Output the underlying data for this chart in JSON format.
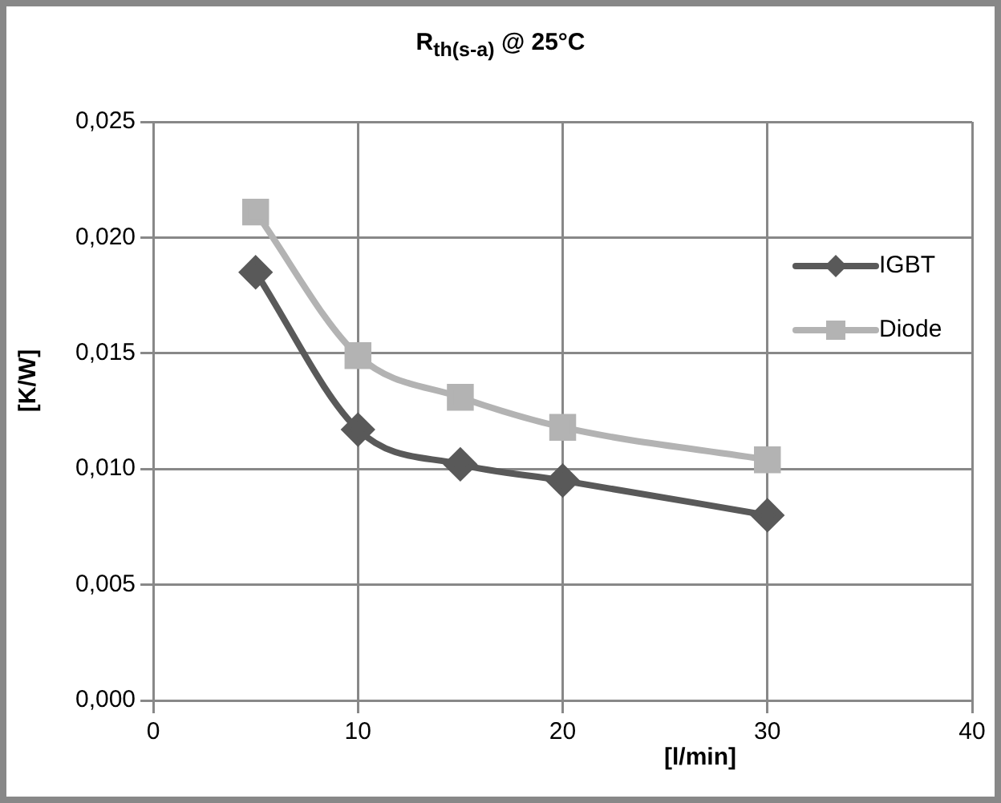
{
  "chart_data": {
    "type": "line",
    "title": "R$_{th(s-a)}$ @ 25°C",
    "xlabel": "[l/min]",
    "ylabel": "[K/W]",
    "x": [
      5,
      10,
      15,
      20,
      30
    ],
    "series": [
      {
        "name": "IGBT",
        "color": "#595959",
        "marker": "diamond",
        "values": [
          0.0185,
          0.0117,
          0.0102,
          0.0095,
          0.008
        ]
      },
      {
        "name": "Diode",
        "color": "#b3b3b3",
        "marker": "square",
        "values": [
          0.0211,
          0.0149,
          0.0131,
          0.0118,
          0.0104
        ]
      }
    ],
    "xlim": [
      0,
      40
    ],
    "xticks": [
      0,
      10,
      20,
      30,
      40
    ],
    "ylim": [
      0,
      0.025
    ],
    "yticks": [
      {
        "value": 0,
        "label": "0,000"
      },
      {
        "value": 0.005,
        "label": "0,005"
      },
      {
        "value": 0.01,
        "label": "0,010"
      },
      {
        "value": 0.015,
        "label": "0,015"
      },
      {
        "value": 0.02,
        "label": "0,020"
      },
      {
        "value": 0.025,
        "label": "0,025"
      }
    ],
    "grid": true,
    "legend": "right",
    "line_style": "solid"
  }
}
